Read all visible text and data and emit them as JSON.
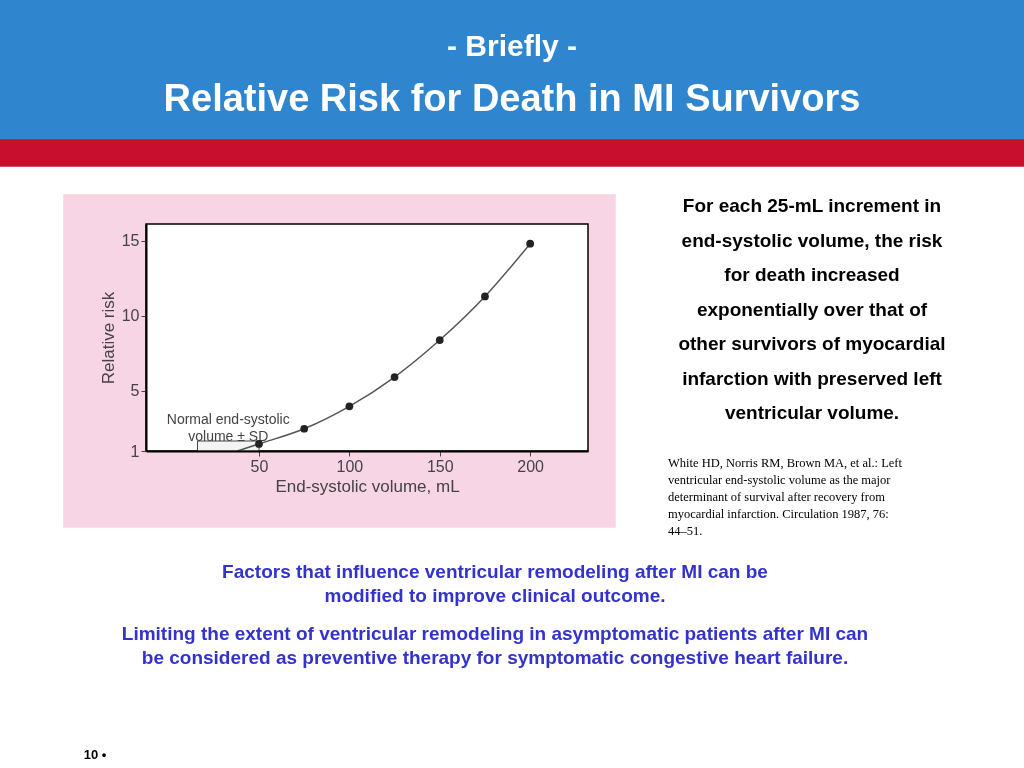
{
  "chart_data": {
    "type": "scatter",
    "title": "Relative Risk for Death in MI Survivors",
    "subtitle": "- Briefly -",
    "xlabel": "End-systolic volume, mL",
    "ylabel": "Relative risk",
    "x": [
      50,
      75,
      100,
      125,
      150,
      175,
      200
    ],
    "series": [
      {
        "type": "line",
        "color": "#555555",
        "marker": "none",
        "x": [
          38,
          50,
          75,
          100,
          125,
          150,
          175,
          200
        ],
        "values": [
          1,
          1.47,
          2.48,
          3.97,
          5.92,
          8.38,
          11.28,
          14.79
        ]
      },
      {
        "color": "#222222",
        "marker": "circle",
        "values": [
          1.47,
          2.48,
          3.97,
          5.92,
          8.38,
          11.28,
          14.79
        ]
      }
    ],
    "xlim": [
      -12.5,
      232
    ],
    "ylim": [
      1,
      16.1
    ],
    "xticks": [
      50,
      100,
      150,
      200
    ],
    "yticks": [
      1,
      5,
      10,
      15
    ],
    "grid": false,
    "bands": [
      {
        "axis": "x",
        "from": 16,
        "to": 50,
        "label": "Normal end-systolic volume ± SD"
      }
    ],
    "annotations": [
      "For each 25-mL increment in end-systolic volume, the risk for death increased exponentially over that of other survivors of myocardial infarction with preserved left ventricular volume.",
      "White HD, Norris RM, Brown MA, et al.: Left ventricular end-systolic volume as the major determinant of survival after recovery from myocardial infarction. Circulation 1987, 76: 44–51.",
      "Factors that influence ventricular remodeling after MI can be modified to improve clinical outcome.",
      "Limiting the extent of ventricular remodeling in asymptomatic patients after MI can be considered as preventive therapy for symptomatic congestive heart failure.",
      "10 •"
    ]
  }
}
